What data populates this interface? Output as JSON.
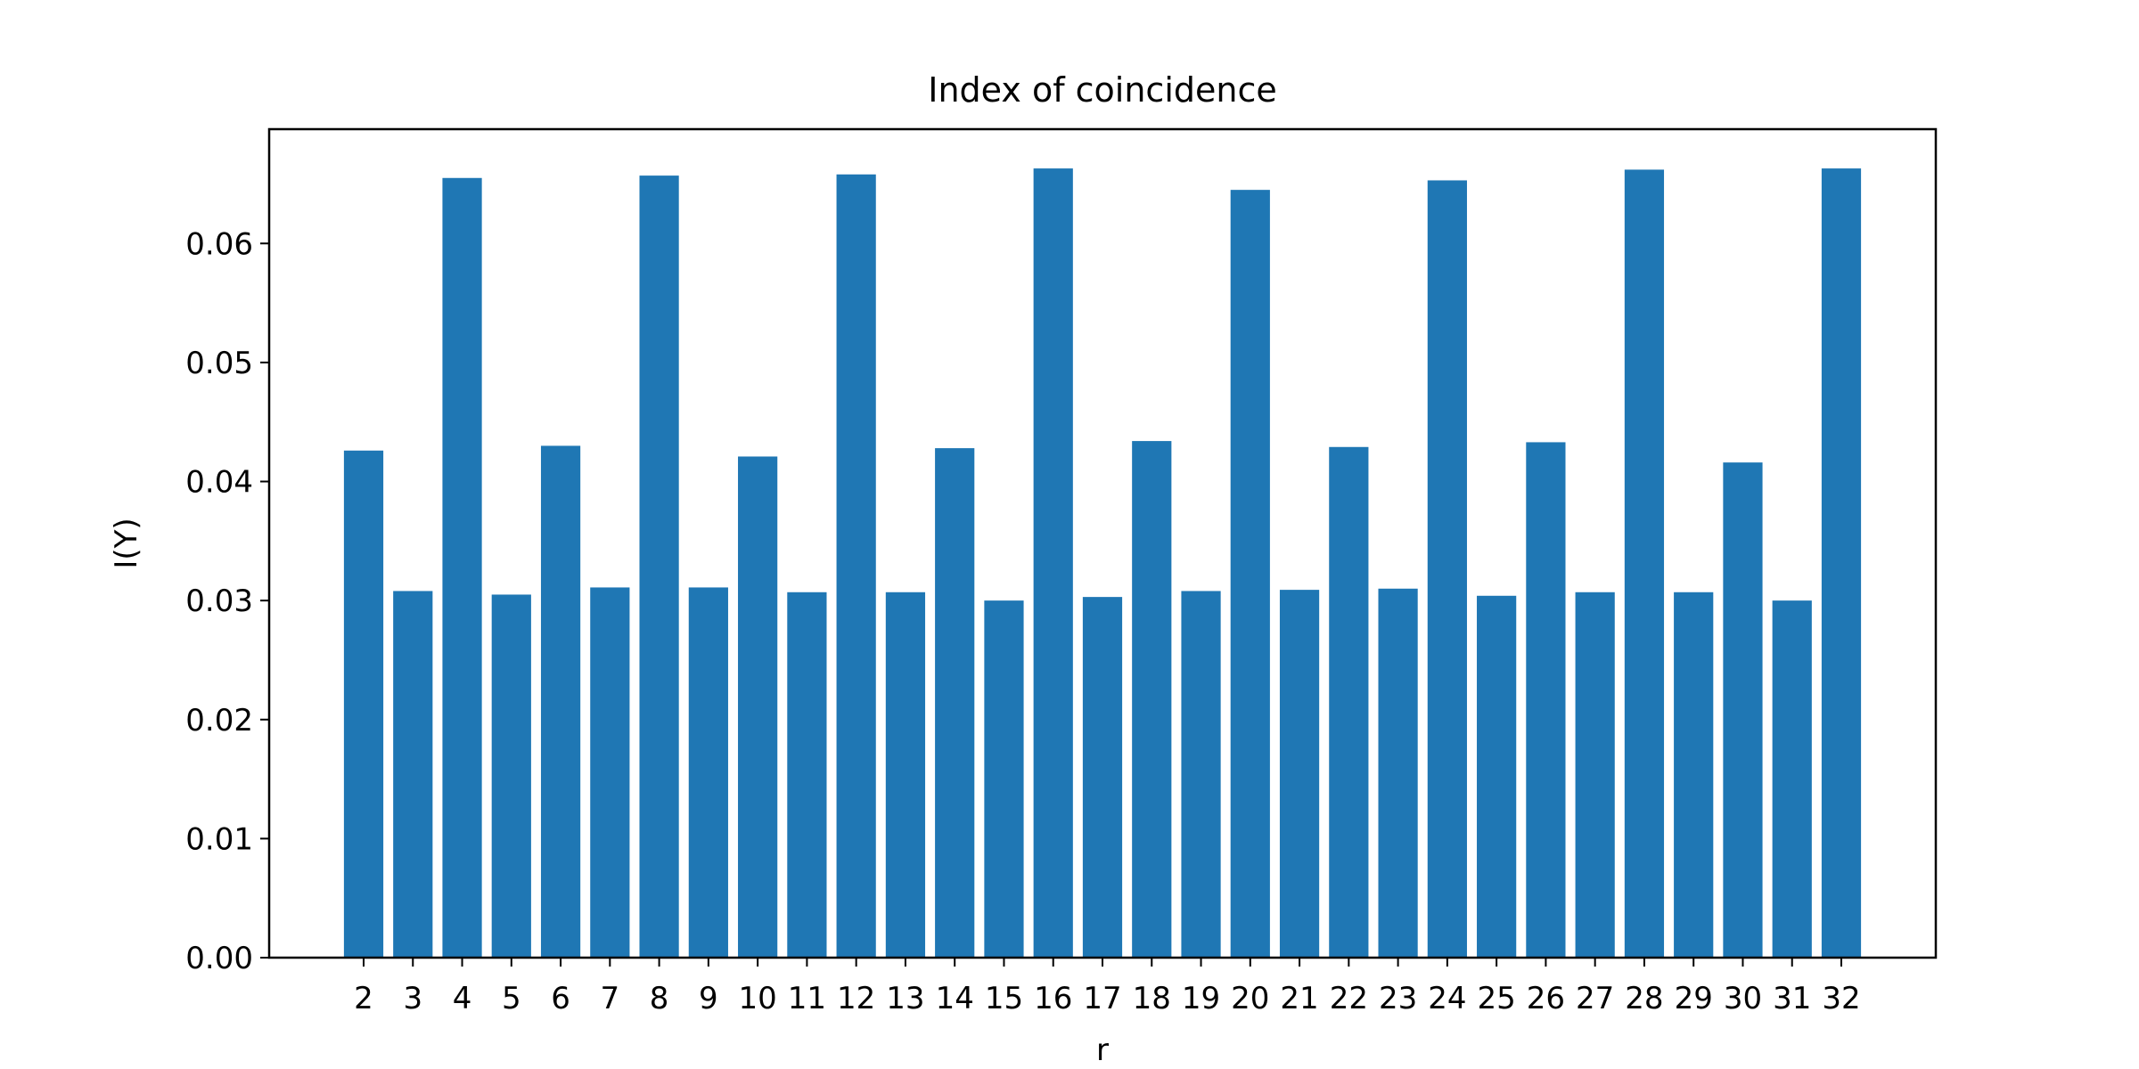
{
  "chart_data": {
    "type": "bar",
    "title": "Index of coincidence",
    "xlabel": "r",
    "ylabel": "I(Y)",
    "categories": [
      "2",
      "3",
      "4",
      "5",
      "6",
      "7",
      "8",
      "9",
      "10",
      "11",
      "12",
      "13",
      "14",
      "15",
      "16",
      "17",
      "18",
      "19",
      "20",
      "21",
      "22",
      "23",
      "24",
      "25",
      "26",
      "27",
      "28",
      "29",
      "30",
      "31",
      "32"
    ],
    "values": [
      0.0426,
      0.0308,
      0.0655,
      0.0305,
      0.043,
      0.0311,
      0.0657,
      0.0311,
      0.0421,
      0.0307,
      0.0658,
      0.0307,
      0.0428,
      0.03,
      0.0663,
      0.0303,
      0.0434,
      0.0308,
      0.0645,
      0.0309,
      0.0429,
      0.031,
      0.0653,
      0.0304,
      0.0433,
      0.0307,
      0.0662,
      0.0307,
      0.0416,
      0.03,
      0.0663
    ],
    "ylim": [
      0,
      0.0696
    ],
    "yticks": [
      0.0,
      0.01,
      0.02,
      0.03,
      0.04,
      0.05,
      0.06
    ],
    "ytick_labels": [
      "0.00",
      "0.01",
      "0.02",
      "0.03",
      "0.04",
      "0.05",
      "0.06"
    ],
    "grid": false,
    "bar_color": "#1f77b4"
  }
}
